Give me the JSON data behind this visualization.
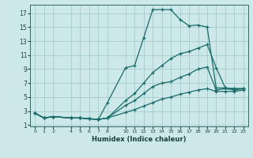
{
  "xlabel": "Humidex (Indice chaleur)",
  "background_color": "#cce8e8",
  "grid_color": "#aacece",
  "line_color": "#1a6b6b",
  "xlim": [
    -0.5,
    23.5
  ],
  "ylim": [
    0.8,
    18.2
  ],
  "xticks": [
    0,
    1,
    2,
    4,
    5,
    6,
    7,
    8,
    10,
    11,
    12,
    13,
    14,
    15,
    16,
    17,
    18,
    19,
    20,
    21,
    22,
    23
  ],
  "xtick_labels": [
    "0",
    "1",
    "2",
    "4",
    "5",
    "6",
    "7",
    "8",
    "10",
    "11",
    "12",
    "13",
    "14",
    "15",
    "16",
    "17",
    "18",
    "19",
    "20",
    "21",
    "22",
    "23"
  ],
  "yticks": [
    1,
    3,
    5,
    7,
    9,
    11,
    13,
    15,
    17
  ],
  "series": [
    {
      "x": [
        0,
        1,
        2,
        4,
        5,
        6,
        7,
        8,
        10,
        11,
        12,
        13,
        14,
        15,
        16,
        17,
        18,
        19,
        20,
        21,
        22,
        23
      ],
      "y": [
        2.7,
        2.0,
        2.2,
        2.0,
        2.0,
        1.9,
        1.8,
        4.2,
        9.2,
        9.5,
        13.5,
        17.5,
        17.5,
        17.5,
        16.1,
        15.2,
        15.3,
        15.0,
        6.3,
        6.3,
        6.2,
        6.2
      ]
    },
    {
      "x": [
        0,
        1,
        2,
        4,
        5,
        6,
        7,
        8,
        10,
        11,
        12,
        13,
        14,
        15,
        16,
        17,
        18,
        19,
        20,
        21,
        22,
        23
      ],
      "y": [
        2.7,
        2.0,
        2.2,
        2.0,
        2.0,
        1.9,
        1.8,
        2.0,
        4.5,
        5.5,
        7.0,
        8.5,
        9.5,
        10.5,
        11.2,
        11.5,
        12.0,
        12.5,
        9.2,
        6.3,
        6.2,
        6.2
      ]
    },
    {
      "x": [
        0,
        1,
        2,
        4,
        5,
        6,
        7,
        8,
        10,
        11,
        12,
        13,
        14,
        15,
        16,
        17,
        18,
        19,
        20,
        21,
        22,
        23
      ],
      "y": [
        2.7,
        2.0,
        2.2,
        2.0,
        2.0,
        1.9,
        1.8,
        2.0,
        3.8,
        4.5,
        5.5,
        6.5,
        7.0,
        7.2,
        7.8,
        8.3,
        9.0,
        9.3,
        6.0,
        6.2,
        6.0,
        6.2
      ]
    },
    {
      "x": [
        0,
        1,
        2,
        4,
        5,
        6,
        7,
        8,
        10,
        11,
        12,
        13,
        14,
        15,
        16,
        17,
        18,
        19,
        20,
        21,
        22,
        23
      ],
      "y": [
        2.7,
        2.0,
        2.2,
        2.0,
        2.0,
        1.9,
        1.8,
        2.0,
        2.8,
        3.2,
        3.7,
        4.2,
        4.7,
        5.0,
        5.4,
        5.7,
        6.0,
        6.2,
        5.8,
        5.8,
        5.8,
        6.0
      ]
    }
  ]
}
